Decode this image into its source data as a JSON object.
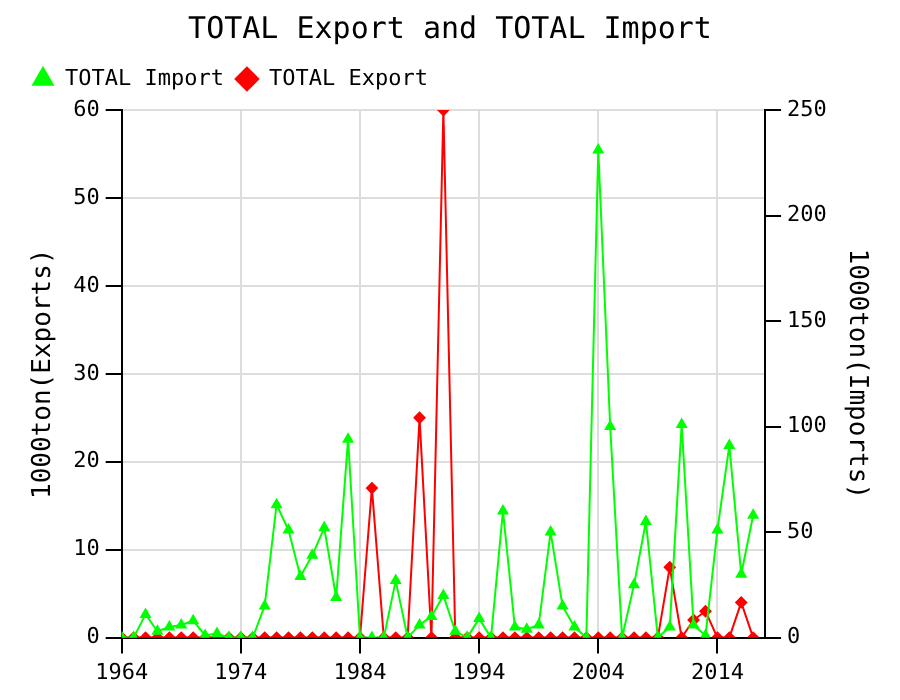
{
  "chart_data": {
    "type": "line",
    "title": "TOTAL Export and TOTAL Import",
    "ylabel": "1000ton(Exports)",
    "y2label": "1000ton(Imports)",
    "x": [
      1964,
      1965,
      1966,
      1967,
      1968,
      1969,
      1970,
      1971,
      1972,
      1973,
      1974,
      1975,
      1976,
      1977,
      1978,
      1979,
      1980,
      1981,
      1982,
      1983,
      1984,
      1985,
      1986,
      1987,
      1988,
      1989,
      1990,
      1991,
      1992,
      1993,
      1994,
      1995,
      1996,
      1997,
      1998,
      1999,
      2000,
      2001,
      2002,
      2003,
      2004,
      2005,
      2006,
      2007,
      2008,
      2009,
      2010,
      2011,
      2012,
      2013,
      2014,
      2015,
      2016,
      2017
    ],
    "series": [
      {
        "name": "TOTAL Export",
        "color": "#ff0000",
        "marker": "diamond",
        "values": [
          0,
          0,
          0,
          0,
          0,
          0,
          0,
          0,
          0,
          0,
          0,
          0,
          0,
          0,
          0,
          0,
          0,
          0,
          0,
          0,
          0,
          17,
          0,
          0,
          0,
          25,
          0,
          60,
          0,
          0,
          0,
          0,
          0,
          0,
          0,
          0,
          0,
          0,
          0,
          0,
          0,
          0,
          0,
          0,
          0,
          0,
          8,
          0,
          2,
          3,
          0,
          0,
          4,
          0
        ]
      },
      {
        "name": "TOTAL Import",
        "color": "#00ff00",
        "marker": "triangle",
        "axis": "y2",
        "values": [
          0,
          0,
          11,
          3,
          5,
          6,
          8,
          1,
          2,
          0,
          0,
          0,
          15,
          63,
          51,
          29,
          39,
          52,
          19,
          94,
          0,
          0,
          0,
          27,
          0,
          6,
          10,
          20,
          3,
          0,
          9,
          0,
          60,
          5,
          4,
          6,
          50,
          15,
          5,
          0,
          231,
          100,
          0,
          25,
          55,
          0,
          5,
          101,
          6,
          1,
          51,
          91,
          30,
          58
        ]
      }
    ],
    "xlim": [
      1964,
      2018
    ],
    "xticks": [
      1964,
      1974,
      1984,
      1994,
      2004,
      2014
    ],
    "ylim": [
      0,
      60
    ],
    "yticks": [
      0,
      10,
      20,
      30,
      40,
      50,
      60
    ],
    "y2lim": [
      0,
      250
    ],
    "y2ticks": [
      0,
      50,
      100,
      150,
      200,
      250
    ],
    "grid": true,
    "legend": "top left"
  }
}
